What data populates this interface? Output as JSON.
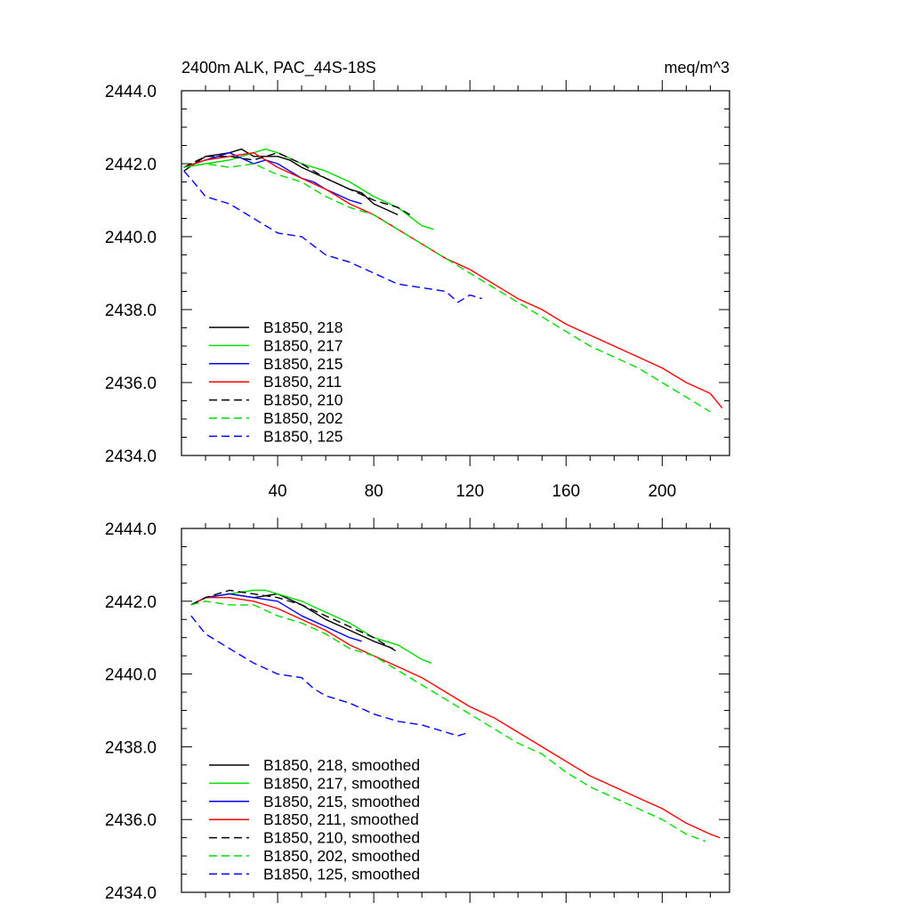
{
  "chart_data": [
    {
      "type": "line",
      "title": "2400m ALK, PAC_44S-18S",
      "title_right": "meq/m^3",
      "xlabel": "",
      "ylabel": "",
      "xlim": [
        0,
        228
      ],
      "ylim": [
        2434.0,
        2444.0
      ],
      "xticks": [
        40,
        80,
        120,
        160,
        200
      ],
      "xtick_labels": [
        "40",
        "80",
        "120",
        "160",
        "200"
      ],
      "yticks": [
        2434.0,
        2436.0,
        2438.0,
        2440.0,
        2442.0,
        2444.0
      ],
      "ytick_labels": [
        "2434.0",
        "2436.0",
        "2438.0",
        "2440.0",
        "2442.0",
        "2444.0"
      ],
      "legend_position": "bottom-left",
      "grid": false,
      "series": [
        {
          "name": "B1850, 218",
          "color": "#000000",
          "dash": "solid",
          "x": [
            1,
            10,
            20,
            25,
            30,
            40,
            45,
            50,
            60,
            70,
            75,
            80,
            90
          ],
          "y": [
            2441.8,
            2442.2,
            2442.3,
            2442.4,
            2442.2,
            2442.2,
            2442.1,
            2441.9,
            2441.6,
            2441.3,
            2441.2,
            2440.9,
            2440.6
          ]
        },
        {
          "name": "B1850, 217",
          "color": "#00dd00",
          "dash": "solid",
          "x": [
            1,
            10,
            20,
            30,
            35,
            40,
            50,
            60,
            70,
            80,
            90,
            100,
            105
          ],
          "y": [
            2441.9,
            2442.0,
            2442.1,
            2442.3,
            2442.4,
            2442.3,
            2442.0,
            2441.8,
            2441.5,
            2441.1,
            2440.8,
            2440.3,
            2440.2
          ]
        },
        {
          "name": "B1850, 215",
          "color": "#0000ff",
          "dash": "solid",
          "x": [
            1,
            10,
            20,
            30,
            35,
            40,
            45,
            50,
            55,
            60,
            70,
            75
          ],
          "y": [
            2441.9,
            2442.1,
            2442.3,
            2442.0,
            2442.1,
            2442.0,
            2441.8,
            2441.6,
            2441.5,
            2441.3,
            2441.0,
            2440.9
          ]
        },
        {
          "name": "B1850, 211",
          "color": "#ff0000",
          "dash": "solid",
          "x": [
            1,
            10,
            20,
            30,
            40,
            50,
            60,
            70,
            80,
            90,
            100,
            110,
            120,
            130,
            140,
            150,
            160,
            170,
            180,
            190,
            200,
            210,
            220,
            225
          ],
          "y": [
            2441.9,
            2442.1,
            2442.2,
            2442.3,
            2441.9,
            2441.6,
            2441.3,
            2440.9,
            2440.6,
            2440.2,
            2439.8,
            2439.4,
            2439.1,
            2438.7,
            2438.3,
            2438.0,
            2437.6,
            2437.3,
            2437.0,
            2436.7,
            2436.4,
            2436.0,
            2435.7,
            2435.3
          ]
        },
        {
          "name": "B1850, 210",
          "color": "#000000",
          "dash": "dashed",
          "x": [
            1,
            10,
            20,
            30,
            40,
            50,
            55,
            60,
            70,
            80,
            90,
            95
          ],
          "y": [
            2441.9,
            2442.2,
            2442.2,
            2442.1,
            2442.3,
            2442.0,
            2441.8,
            2441.6,
            2441.3,
            2441.0,
            2440.8,
            2440.6
          ]
        },
        {
          "name": "B1850, 202",
          "color": "#00dd00",
          "dash": "dashed",
          "x": [
            1,
            10,
            20,
            30,
            40,
            50,
            60,
            70,
            80,
            90,
            100,
            110,
            120,
            130,
            140,
            150,
            160,
            170,
            180,
            190,
            200,
            210,
            220
          ],
          "y": [
            2441.9,
            2442.0,
            2441.9,
            2442.0,
            2441.7,
            2441.5,
            2441.1,
            2440.8,
            2440.6,
            2440.2,
            2439.8,
            2439.4,
            2439.0,
            2438.6,
            2438.2,
            2437.8,
            2437.4,
            2437.0,
            2436.7,
            2436.4,
            2436.0,
            2435.6,
            2435.2
          ]
        },
        {
          "name": "B1850, 125",
          "color": "#0000ff",
          "dash": "dashed",
          "x": [
            1,
            5,
            10,
            20,
            30,
            40,
            50,
            60,
            70,
            80,
            90,
            100,
            110,
            115,
            120,
            125
          ],
          "y": [
            2441.8,
            2441.5,
            2441.1,
            2440.9,
            2440.5,
            2440.1,
            2440.0,
            2439.5,
            2439.3,
            2439.0,
            2438.7,
            2438.6,
            2438.5,
            2438.2,
            2438.4,
            2438.3
          ]
        }
      ]
    },
    {
      "type": "line",
      "title": "",
      "xlabel": "",
      "ylabel": "",
      "xlim": [
        0,
        228
      ],
      "ylim": [
        2434.0,
        2444.0
      ],
      "xticks": [
        40,
        80,
        120,
        160,
        200
      ],
      "xtick_labels": [],
      "yticks": [
        2434.0,
        2436.0,
        2438.0,
        2440.0,
        2442.0,
        2444.0
      ],
      "ytick_labels": [
        "2434.0",
        "2436.0",
        "2438.0",
        "2440.0",
        "2442.0",
        "2444.0"
      ],
      "legend_position": "bottom-left",
      "grid": false,
      "series": [
        {
          "name": "B1850, 218, smoothed",
          "color": "#000000",
          "dash": "solid",
          "x": [
            4,
            10,
            20,
            30,
            40,
            50,
            60,
            70,
            80,
            88
          ],
          "y": [
            2441.9,
            2442.1,
            2442.2,
            2442.1,
            2442.2,
            2441.9,
            2441.5,
            2441.2,
            2440.9,
            2440.7
          ]
        },
        {
          "name": "B1850, 217, smoothed",
          "color": "#00dd00",
          "dash": "solid",
          "x": [
            4,
            10,
            20,
            30,
            35,
            40,
            50,
            60,
            70,
            80,
            90,
            100,
            104
          ],
          "y": [
            2441.9,
            2442.1,
            2442.2,
            2442.3,
            2442.3,
            2442.2,
            2442.0,
            2441.7,
            2441.4,
            2441.0,
            2440.8,
            2440.4,
            2440.3
          ]
        },
        {
          "name": "B1850, 215, smoothed",
          "color": "#0000ff",
          "dash": "solid",
          "x": [
            4,
            10,
            20,
            30,
            40,
            50,
            60,
            70,
            75
          ],
          "y": [
            2441.9,
            2442.1,
            2442.2,
            2442.1,
            2442.0,
            2441.6,
            2441.3,
            2441.0,
            2440.9
          ]
        },
        {
          "name": "B1850, 211, smoothed",
          "color": "#ff0000",
          "dash": "solid",
          "x": [
            4,
            10,
            20,
            30,
            40,
            50,
            60,
            70,
            80,
            90,
            100,
            110,
            120,
            130,
            140,
            150,
            160,
            170,
            180,
            190,
            200,
            210,
            220,
            224
          ],
          "y": [
            2441.9,
            2442.1,
            2442.1,
            2442.0,
            2441.8,
            2441.5,
            2441.2,
            2440.8,
            2440.5,
            2440.2,
            2439.9,
            2439.5,
            2439.1,
            2438.8,
            2438.4,
            2438.0,
            2437.6,
            2437.2,
            2436.9,
            2436.6,
            2436.3,
            2435.9,
            2435.6,
            2435.5
          ]
        },
        {
          "name": "B1850, 210, smoothed",
          "color": "#000000",
          "dash": "dashed",
          "x": [
            4,
            10,
            20,
            30,
            40,
            50,
            60,
            70,
            80,
            90
          ],
          "y": [
            2441.9,
            2442.1,
            2442.3,
            2442.2,
            2442.1,
            2441.9,
            2441.6,
            2441.3,
            2441.0,
            2440.6
          ]
        },
        {
          "name": "B1850, 202, smoothed",
          "color": "#00dd00",
          "dash": "dashed",
          "x": [
            4,
            10,
            20,
            30,
            40,
            50,
            60,
            70,
            80,
            90,
            100,
            110,
            120,
            130,
            140,
            150,
            160,
            170,
            180,
            190,
            200,
            210,
            218
          ],
          "y": [
            2441.9,
            2442.0,
            2441.9,
            2441.9,
            2441.6,
            2441.4,
            2441.1,
            2440.7,
            2440.5,
            2440.1,
            2439.7,
            2439.3,
            2438.9,
            2438.5,
            2438.1,
            2437.8,
            2437.3,
            2436.9,
            2436.6,
            2436.3,
            2436.0,
            2435.6,
            2435.4
          ]
        },
        {
          "name": "B1850, 125, smoothed",
          "color": "#0000ff",
          "dash": "dashed",
          "x": [
            4,
            10,
            20,
            30,
            40,
            50,
            55,
            60,
            70,
            80,
            90,
            100,
            110,
            115,
            120
          ],
          "y": [
            2441.6,
            2441.1,
            2440.7,
            2440.3,
            2440.0,
            2439.9,
            2439.6,
            2439.4,
            2439.2,
            2438.9,
            2438.7,
            2438.6,
            2438.4,
            2438.3,
            2438.4
          ]
        }
      ]
    }
  ]
}
